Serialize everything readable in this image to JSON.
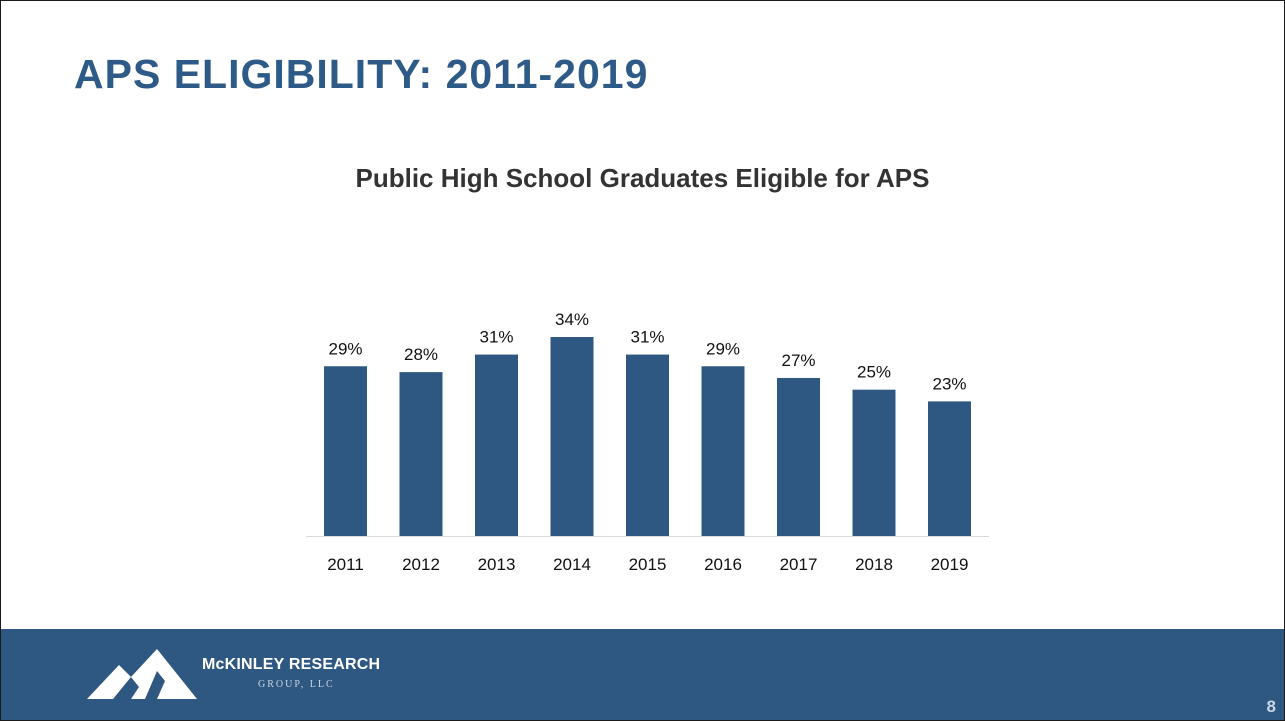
{
  "slide": {
    "title": "APS ELIGIBILITY: 2011-2019",
    "page_number": "8"
  },
  "footer": {
    "company_name": "McKINLEY RESEARCH",
    "company_suffix": "GROUP, LLC",
    "logo_icon": "mountain-logo-icon"
  },
  "colors": {
    "title": "#2d5a86",
    "bar": "#2e5881",
    "footer": "#2e5881"
  },
  "chart_data": {
    "type": "bar",
    "title": "Public High School Graduates Eligible for APS",
    "categories": [
      "2011",
      "2012",
      "2013",
      "2014",
      "2015",
      "2016",
      "2017",
      "2018",
      "2019"
    ],
    "values": [
      29,
      28,
      31,
      34,
      31,
      29,
      27,
      25,
      23
    ],
    "value_labels": [
      "29%",
      "28%",
      "31%",
      "34%",
      "31%",
      "29%",
      "27%",
      "25%",
      "23%"
    ],
    "xlabel": "",
    "ylabel": "",
    "ylim": [
      0,
      34
    ],
    "grid": false,
    "legend": "none"
  }
}
